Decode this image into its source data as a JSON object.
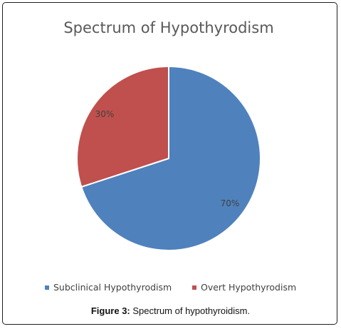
{
  "chart_data": {
    "type": "pie",
    "title": "Spectrum of Hypothyrodism",
    "categories": [
      "Subclinical Hypothyrodism",
      "Overt Hypothyrodism"
    ],
    "values": [
      70,
      30
    ],
    "data_labels": [
      "70%",
      "30%"
    ],
    "colors": [
      "#4f81bd",
      "#c0504d"
    ],
    "legend_position": "bottom"
  },
  "caption": {
    "label": "Figure 3:",
    "text": " Spectrum of hypothyroidism."
  }
}
